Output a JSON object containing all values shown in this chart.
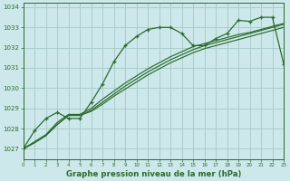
{
  "title": "Graphe pression niveau de la mer (hPa)",
  "background_color": "#cce8ea",
  "grid_color": "#aacccc",
  "line_color": "#2d6a2d",
  "xlim": [
    0,
    23
  ],
  "ylim": [
    1026.5,
    1034.2
  ],
  "yticks": [
    1027,
    1028,
    1029,
    1030,
    1031,
    1032,
    1033,
    1034
  ],
  "xticks": [
    0,
    1,
    2,
    3,
    4,
    5,
    6,
    7,
    8,
    9,
    10,
    11,
    12,
    13,
    14,
    15,
    16,
    17,
    18,
    19,
    20,
    21,
    22,
    23
  ],
  "series_jagged": [
    1027.0,
    1027.9,
    1028.5,
    1028.8,
    1028.5,
    1028.5,
    1029.3,
    1030.2,
    1031.3,
    1032.1,
    1032.55,
    1032.9,
    1033.0,
    1033.0,
    1032.7,
    1032.1,
    1032.1,
    1032.45,
    1032.7,
    1033.35,
    1033.3,
    1033.5,
    1033.5,
    1031.2
  ],
  "series_smooth1": [
    1027.0,
    1027.35,
    1027.7,
    1028.3,
    1028.7,
    1028.7,
    1029.0,
    1029.45,
    1029.85,
    1030.25,
    1030.6,
    1030.95,
    1031.25,
    1031.55,
    1031.8,
    1032.05,
    1032.2,
    1032.35,
    1032.5,
    1032.65,
    1032.75,
    1032.9,
    1033.05,
    1033.2
  ],
  "series_smooth2": [
    1027.0,
    1027.3,
    1027.65,
    1028.2,
    1028.65,
    1028.65,
    1028.9,
    1029.3,
    1029.7,
    1030.1,
    1030.45,
    1030.8,
    1031.1,
    1031.4,
    1031.65,
    1031.9,
    1032.1,
    1032.25,
    1032.4,
    1032.55,
    1032.7,
    1032.85,
    1033.0,
    1033.15
  ],
  "series_smooth3": [
    1027.0,
    1027.3,
    1027.65,
    1028.2,
    1028.65,
    1028.65,
    1028.85,
    1029.2,
    1029.6,
    1029.95,
    1030.3,
    1030.65,
    1030.95,
    1031.25,
    1031.5,
    1031.75,
    1031.95,
    1032.1,
    1032.25,
    1032.4,
    1032.55,
    1032.7,
    1032.85,
    1033.0
  ]
}
